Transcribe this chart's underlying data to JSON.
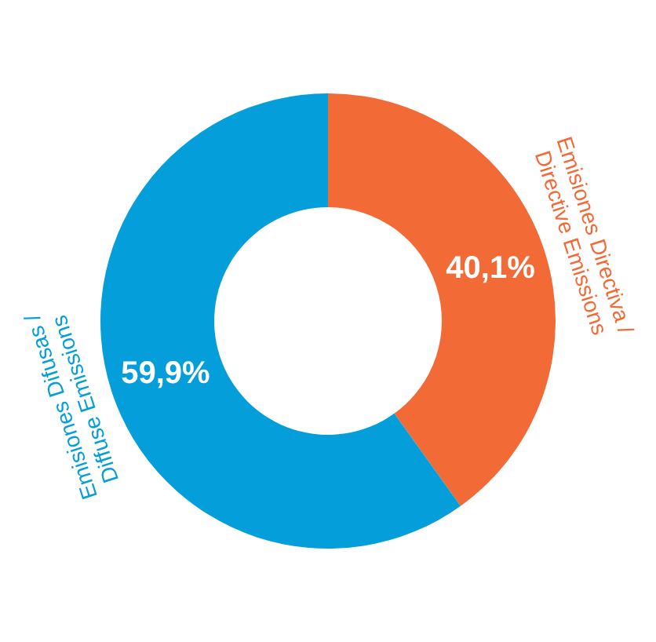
{
  "chart_data": {
    "type": "donut",
    "categories": [
      "Emisiones Directiva / Directive Emissions",
      "Emisiones Difusas / Diffuse Emissions"
    ],
    "values": [
      40.1,
      59.9
    ],
    "colors": [
      "#f26a36",
      "#049fda"
    ],
    "value_labels": [
      "40,1%",
      "59,9%"
    ]
  }
}
